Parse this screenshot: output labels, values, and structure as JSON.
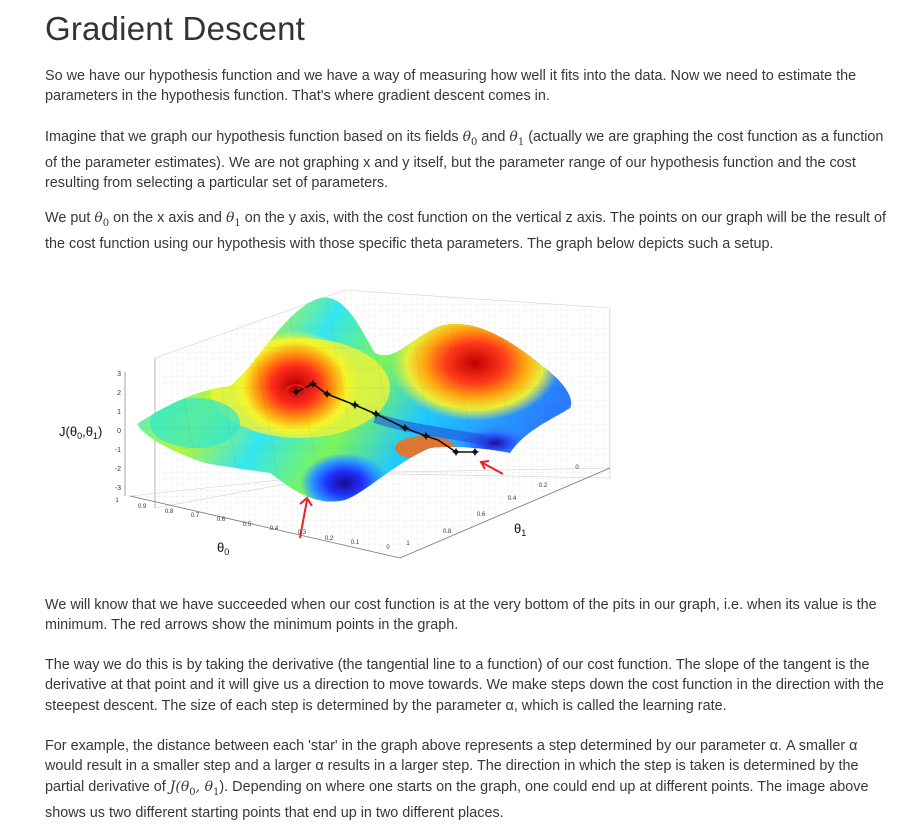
{
  "title": "Gradient Descent",
  "p1": "So we have our hypothesis function and we have a way of measuring how well it fits into the data. Now we need to estimate the parameters in the hypothesis function. That's where gradient descent comes in.",
  "p2": {
    "a": "Imagine that we graph our hypothesis function based on its fields ",
    "theta0": "θ",
    "and": " and ",
    "theta1": "θ",
    "b": " (actually we are graphing the cost function as a function of the parameter estimates). We are not graphing x and y itself, but the parameter range of our hypothesis function and the cost resulting from selecting a particular set of parameters."
  },
  "p3": {
    "a": "We put ",
    "theta0": "θ",
    "b": " on the x axis and ",
    "theta1": "θ",
    "c": " on the y axis, with the cost function on the vertical z axis. The points on our graph will be the result of the cost function using our hypothesis with those specific theta parameters. The graph below depicts such a setup."
  },
  "figure": {
    "zlabel": "J(θ0,θ1)",
    "xlabel": "θ0",
    "ylabel": "θ1",
    "z_ticks": [
      "3",
      "2",
      "1",
      "0",
      "-1",
      "-2",
      "-3"
    ],
    "x_ticks": [
      "1",
      "0.9",
      "0.8",
      "0.7",
      "0.6",
      "0.5",
      "0.4",
      "0.3",
      "0.2",
      "0.1",
      "0"
    ],
    "y_ticks": [
      "1",
      "0.8",
      "0.6",
      "0.4",
      "0.2",
      "0"
    ]
  },
  "p4": "We will know that we have succeeded when our cost function is at the very bottom of the pits in our graph, i.e. when its value is the minimum. The red arrows show the minimum points in the graph.",
  "p5": "The way we do this is by taking the derivative (the tangential line to a function) of our cost function. The slope of the tangent is the derivative at that point and it will give us a direction to move towards. We make steps down the cost function in the direction with the steepest descent. The size of each step is determined by the parameter α, which is called the learning rate.",
  "p6": {
    "a": "For example, the distance between each 'star' in the graph above represents a step determined by our parameter α. A smaller α would result in a smaller step and a larger α results in a larger step. The direction in which the step is taken is determined by the partial derivative of ",
    "J": "J(θ",
    "b": "). Depending on where one starts on the graph, one could end up at different points. The image above shows us two different starting points that end up in two different places."
  }
}
